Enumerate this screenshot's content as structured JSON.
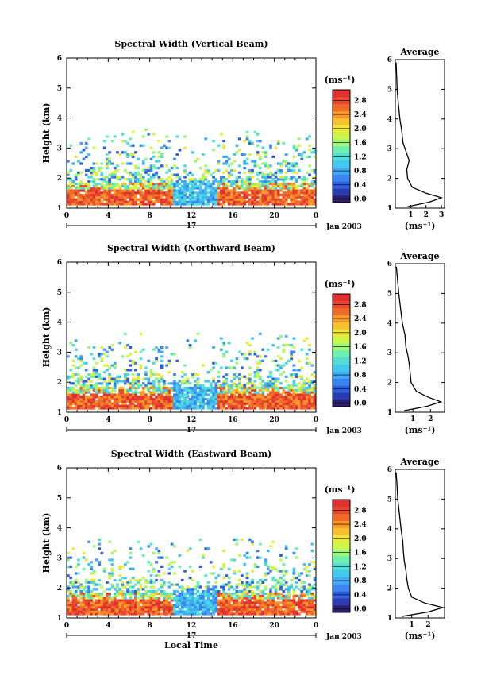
{
  "chart_data": [
    {
      "type": "heatmap",
      "title": "Spectral Width (Vertical Beam)",
      "xlabel": "",
      "ylabel": "Height (km)",
      "xlim": [
        0,
        24
      ],
      "ylim": [
        1,
        6
      ],
      "x_ticks": [
        "0",
        "4",
        "8",
        "12",
        "16",
        "20",
        "0"
      ],
      "y_ticks": [
        "1",
        "2",
        "3",
        "4",
        "5",
        "6"
      ],
      "date_label": "17",
      "date_suffix": "Jan 2003",
      "profile": {
        "title": "Average",
        "xlabel": "(ms⁻¹)",
        "x_ticks": [
          "1",
          "2",
          "3"
        ],
        "xlim": [
          0,
          3.2
        ],
        "heights": [
          1.05,
          1.2,
          1.35,
          1.5,
          1.7,
          2.0,
          2.3,
          2.6,
          2.9,
          3.2,
          3.6,
          4.0,
          4.5,
          5.0,
          5.5,
          5.9
        ],
        "values": [
          0.8,
          2.2,
          3.0,
          2.0,
          1.1,
          0.8,
          0.75,
          0.9,
          0.7,
          0.5,
          0.42,
          0.3,
          0.2,
          0.12,
          0.08,
          0.05
        ]
      }
    },
    {
      "type": "heatmap",
      "title": "Spectral Width (Northward Beam)",
      "xlabel": "",
      "ylabel": "Height (km)",
      "xlim": [
        0,
        24
      ],
      "ylim": [
        1,
        6
      ],
      "x_ticks": [
        "0",
        "4",
        "8",
        "12",
        "16",
        "20",
        "0"
      ],
      "y_ticks": [
        "1",
        "2",
        "3",
        "4",
        "5",
        "6"
      ],
      "date_label": "17",
      "date_suffix": "Jan 2003",
      "profile": {
        "title": "Average",
        "xlabel": "(ms⁻¹)",
        "x_ticks": [
          "1",
          "2"
        ],
        "xlim": [
          0,
          2.8
        ],
        "heights": [
          1.05,
          1.2,
          1.35,
          1.5,
          1.7,
          2.0,
          2.3,
          2.6,
          2.9,
          3.2,
          3.6,
          4.0,
          4.5,
          5.0,
          5.5,
          5.9
        ],
        "values": [
          0.5,
          1.8,
          2.6,
          1.9,
          1.2,
          0.9,
          0.85,
          0.8,
          0.72,
          0.6,
          0.55,
          0.4,
          0.3,
          0.2,
          0.12,
          0.06
        ]
      }
    },
    {
      "type": "heatmap",
      "title": "Spectral Width (Eastward Beam)",
      "xlabel": "Local Time",
      "ylabel": "Height (km)",
      "xlim": [
        0,
        24
      ],
      "ylim": [
        1,
        6
      ],
      "x_ticks": [
        "0",
        "4",
        "8",
        "12",
        "16",
        "20",
        "0"
      ],
      "y_ticks": [
        "1",
        "2",
        "3",
        "4",
        "5",
        "6"
      ],
      "date_label": "17",
      "date_suffix": "Jan 2003",
      "profile": {
        "title": "Average",
        "xlabel": "(ms⁻¹)",
        "x_ticks": [
          "1",
          "2"
        ],
        "xlim": [
          0,
          3.0
        ],
        "heights": [
          1.05,
          1.2,
          1.35,
          1.5,
          1.7,
          2.0,
          2.3,
          2.6,
          2.9,
          3.2,
          3.6,
          4.0,
          4.5,
          5.0,
          5.5,
          5.9
        ],
        "values": [
          0.4,
          2.0,
          2.9,
          1.8,
          1.0,
          0.8,
          0.7,
          0.65,
          0.55,
          0.5,
          0.45,
          0.35,
          0.25,
          0.15,
          0.1,
          0.05
        ]
      }
    }
  ],
  "colorbar": {
    "unit": "(ms⁻¹)",
    "ticks": [
      "0.0",
      "0.4",
      "0.8",
      "1.2",
      "1.6",
      "2.0",
      "2.4",
      "2.8"
    ],
    "colors": [
      "#2b1c6e",
      "#2a3cb0",
      "#2f5fe0",
      "#3a85f0",
      "#40aaf5",
      "#45c8ee",
      "#4ee0d8",
      "#6ef0b0",
      "#9ef57a",
      "#cdf54a",
      "#f0e836",
      "#f8c030",
      "#f89828",
      "#f06a28",
      "#e84830",
      "#e03030"
    ]
  }
}
